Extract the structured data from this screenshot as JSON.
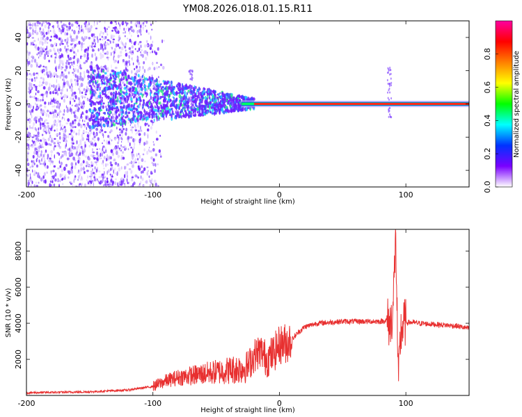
{
  "title": "YM08.2026.018.01.15.R11",
  "chart_data": [
    {
      "type": "heatmap",
      "name": "spectrogram",
      "xlabel": "Height of straight line (km)",
      "ylabel": "Frequency (Hz)",
      "xlim": [
        -200,
        150
      ],
      "ylim": [
        -50,
        50
      ],
      "xticks": [
        -200,
        -100,
        0,
        100
      ],
      "xtick_labels": [
        "-200",
        "-100",
        "0",
        "100"
      ],
      "yticks": [
        -40,
        -20,
        0,
        20,
        40
      ],
      "ytick_labels": [
        "-40",
        "-20",
        "0",
        "20",
        "40"
      ],
      "colorbar": {
        "label": "Normalized spectral amplitude",
        "range": [
          0,
          1
        ],
        "ticks": [
          0.0,
          0.2,
          0.4,
          0.6,
          0.8
        ],
        "tick_labels": [
          "0.0",
          "0.2",
          "0.4",
          "0.6",
          "0.8"
        ],
        "colors": [
          "#ffffff",
          "#7a00ff",
          "#0033ff",
          "#00ffff",
          "#00ff00",
          "#ffff00",
          "#ff8000",
          "#ff0000",
          "#ff00a0"
        ]
      },
      "features": {
        "noise_region_x": [
          -200,
          -100
        ],
        "carrier_center_hz": 0,
        "carrier_strong_from_x": -20,
        "spread_at_x_-150_hz": 20,
        "spike_events_x": [
          -70,
          87
        ]
      }
    },
    {
      "type": "line",
      "name": "snr",
      "xlabel": "Height of straight line (km)",
      "ylabel": "SNR (10 * v/v)",
      "xlim": [
        -200,
        150
      ],
      "ylim": [
        0,
        9200
      ],
      "xticks": [
        -200,
        -100,
        0,
        100
      ],
      "xtick_labels": [
        "-200",
        "-100",
        "0",
        "100"
      ],
      "yticks": [
        2000,
        4000,
        6000,
        8000
      ],
      "ytick_labels": [
        "2000",
        "4000",
        "6000",
        "8000"
      ],
      "color": "#e83030",
      "series": [
        {
          "name": "SNR",
          "x": [
            -200,
            -150,
            -120,
            -100,
            -90,
            -80,
            -70,
            -60,
            -50,
            -40,
            -30,
            -25,
            -20,
            -15,
            -10,
            -5,
            0,
            5,
            10,
            15,
            20,
            30,
            40,
            50,
            60,
            70,
            80,
            85,
            88,
            90,
            92,
            94,
            96,
            98,
            100,
            105,
            110,
            120,
            130,
            140,
            150
          ],
          "y": [
            150,
            200,
            300,
            500,
            800,
            1000,
            1100,
            1200,
            1300,
            1400,
            1500,
            1600,
            2200,
            2500,
            2000,
            2300,
            2800,
            2900,
            3100,
            3500,
            3800,
            4000,
            4050,
            4100,
            4100,
            4100,
            4100,
            4150,
            3900,
            5000,
            9000,
            600,
            3500,
            3950,
            4050,
            4050,
            4000,
            3950,
            3900,
            3850,
            3700
          ]
        }
      ]
    }
  ]
}
